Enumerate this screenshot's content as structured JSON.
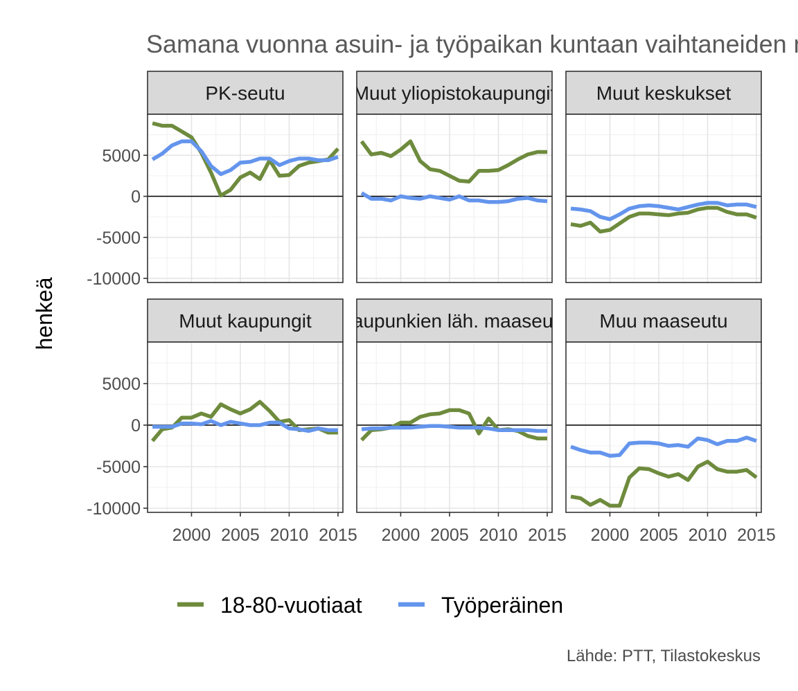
{
  "chart_data": {
    "type": "line",
    "title": "Samana vuonna asuin- ja työpaikan kuntaan vaihtaneiden määrä",
    "ylabel": "henkeä",
    "xlabel": "",
    "caption": "Lähde: PTT, Tilastokeskus",
    "xlim": [
      1995.5,
      2015.5
    ],
    "ylim": [
      -10500,
      10000
    ],
    "x_ticks": [
      2000,
      2005,
      2010,
      2015
    ],
    "y_ticks": [
      5000,
      0,
      -5000,
      -10000
    ],
    "legend_position": "bottom",
    "grid": true,
    "colors": {
      "18-80-vuotiaat": "#6e8b3d",
      "Työperäinen": "#6495ed"
    },
    "legend": [
      {
        "name": "18-80-vuotiaat",
        "color": "#6e8b3d"
      },
      {
        "name": "Työperäinen",
        "color": "#6495ed"
      }
    ],
    "x": [
      1996,
      1997,
      1998,
      1999,
      2000,
      2001,
      2002,
      2003,
      2004,
      2005,
      2006,
      2007,
      2008,
      2009,
      2010,
      2011,
      2012,
      2013,
      2014,
      2015
    ],
    "panels": [
      {
        "name": "PK-seutu",
        "series": [
          {
            "name": "18-80-vuotiaat",
            "values": [
              8900,
              8600,
              8600,
              7900,
              7200,
              5300,
              2900,
              100,
              800,
              2300,
              2900,
              2100,
              4400,
              2500,
              2600,
              3700,
              4100,
              4300,
              4500,
              5800
            ]
          },
          {
            "name": "Työperäinen",
            "values": [
              4500,
              5200,
              6200,
              6700,
              6700,
              5500,
              3700,
              2700,
              3200,
              4100,
              4200,
              4600,
              4600,
              3800,
              4300,
              4600,
              4600,
              4400,
              4400,
              4800
            ]
          }
        ]
      },
      {
        "name": "Muut yliopistokaupungit",
        "series": [
          {
            "name": "18-80-vuotiaat",
            "values": [
              6700,
              5100,
              5300,
              4900,
              5700,
              6700,
              4300,
              3300,
              3100,
              2500,
              1900,
              1800,
              3100,
              3100,
              3200,
              3800,
              4500,
              5100,
              5400,
              5400
            ]
          },
          {
            "name": "Työperäinen",
            "values": [
              400,
              -300,
              -300,
              -500,
              0,
              -200,
              -300,
              0,
              -200,
              -400,
              0,
              -500,
              -500,
              -700,
              -700,
              -600,
              -300,
              -200,
              -500,
              -600
            ]
          }
        ]
      },
      {
        "name": "Muut keskukset",
        "series": [
          {
            "name": "18-80-vuotiaat",
            "values": [
              -3400,
              -3600,
              -3200,
              -4300,
              -4100,
              -3300,
              -2500,
              -2100,
              -2100,
              -2200,
              -2300,
              -2100,
              -2000,
              -1600,
              -1400,
              -1400,
              -1900,
              -2200,
              -2200,
              -2600
            ]
          },
          {
            "name": "Työperäinen",
            "values": [
              -1500,
              -1600,
              -1800,
              -2500,
              -2800,
              -2200,
              -1500,
              -1200,
              -1100,
              -1200,
              -1400,
              -1600,
              -1300,
              -1000,
              -800,
              -800,
              -1100,
              -1000,
              -1000,
              -1300
            ]
          }
        ]
      },
      {
        "name": "Muut kaupungit",
        "series": [
          {
            "name": "18-80-vuotiaat",
            "values": [
              -1900,
              -500,
              -300,
              900,
              900,
              1400,
              1000,
              2500,
              1900,
              1400,
              1900,
              2800,
              1700,
              400,
              600,
              -600,
              -500,
              -400,
              -900,
              -900
            ]
          },
          {
            "name": "Työperäinen",
            "values": [
              -200,
              -200,
              -200,
              200,
              200,
              100,
              500,
              0,
              400,
              200,
              0,
              0,
              300,
              300,
              -400,
              -500,
              -700,
              -400,
              -600,
              -600
            ]
          }
        ]
      },
      {
        "name": "Kaupunkien läh. maaseutu",
        "series": [
          {
            "name": "18-80-vuotiaat",
            "values": [
              -1800,
              -600,
              -500,
              -300,
              300,
              300,
              1000,
              1300,
              1400,
              1800,
              1800,
              1400,
              -1000,
              800,
              -600,
              -500,
              -700,
              -1300,
              -1600,
              -1600
            ]
          },
          {
            "name": "Työperäinen",
            "values": [
              -500,
              -400,
              -400,
              -300,
              -300,
              -300,
              -200,
              -100,
              -100,
              -200,
              -300,
              -300,
              -300,
              -400,
              -600,
              -600,
              -600,
              -600,
              -700,
              -700
            ]
          }
        ]
      },
      {
        "name": "Muu maaseutu",
        "series": [
          {
            "name": "18-80-vuotiaat",
            "values": [
              -8600,
              -8800,
              -9600,
              -9000,
              -9700,
              -9700,
              -6300,
              -5200,
              -5300,
              -5800,
              -6200,
              -5900,
              -6600,
              -5000,
              -4400,
              -5300,
              -5600,
              -5600,
              -5400,
              -6300
            ]
          },
          {
            "name": "Työperäinen",
            "values": [
              -2600,
              -3000,
              -3300,
              -3300,
              -3700,
              -3600,
              -2200,
              -2100,
              -2100,
              -2200,
              -2500,
              -2400,
              -2600,
              -1600,
              -1800,
              -2300,
              -1900,
              -1900,
              -1500,
              -1900
            ]
          }
        ]
      }
    ]
  }
}
